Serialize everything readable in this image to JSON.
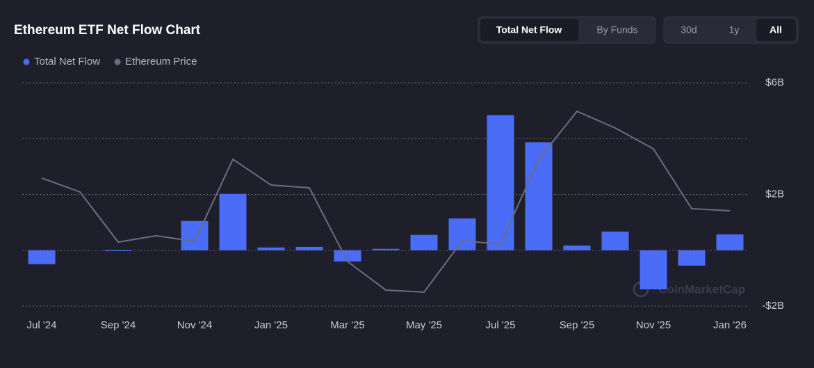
{
  "chart_data": {
    "type": "bar",
    "title": "Ethereum ETF Net Flow Chart",
    "controls": {
      "view": [
        "Total Net Flow",
        "By Funds"
      ],
      "range": [
        "30d",
        "1y",
        "All"
      ]
    },
    "watermark": "CoinMarketCap",
    "categories": [
      "Jul '24",
      null,
      "Sep '24",
      null,
      "Nov '24",
      null,
      "Jan '25",
      null,
      "Mar '25",
      null,
      "May '25",
      null,
      "Jul '25",
      null,
      "Sep '25",
      null,
      "Nov '25",
      null,
      "Jan '26"
    ],
    "series": [
      {
        "name": "Total Net Flow",
        "color": "#4a6cf7",
        "values": [
          -0.5,
          0,
          -0.03,
          0,
          1.05,
          2.02,
          0.1,
          0.12,
          -0.4,
          0.05,
          0.55,
          1.14,
          4.84,
          3.87,
          0.17,
          0.67,
          -1.4,
          -0.55,
          0.57
        ]
      },
      {
        "name": "Ethereum Price",
        "color": "#6b6d80",
        "type": "line",
        "axis": "y2",
        "values": [
          3304,
          3117,
          2444,
          2529,
          2454,
          3556,
          3210,
          3173,
          2183,
          1800,
          1772,
          2463,
          2416,
          3556,
          4200,
          3976,
          3696,
          2893,
          2865
        ]
      }
    ],
    "ylim": [
      -2,
      6
    ],
    "yticks": [
      {
        "value": -2,
        "label": "-$2B"
      },
      {
        "value": 0,
        "label": null
      },
      {
        "value": 2,
        "label": "$2B"
      },
      {
        "value": 4,
        "label": null
      },
      {
        "value": 6,
        "label": "$6B"
      }
    ],
    "y2lim": [
      1585,
      4583
    ],
    "grid": true
  }
}
